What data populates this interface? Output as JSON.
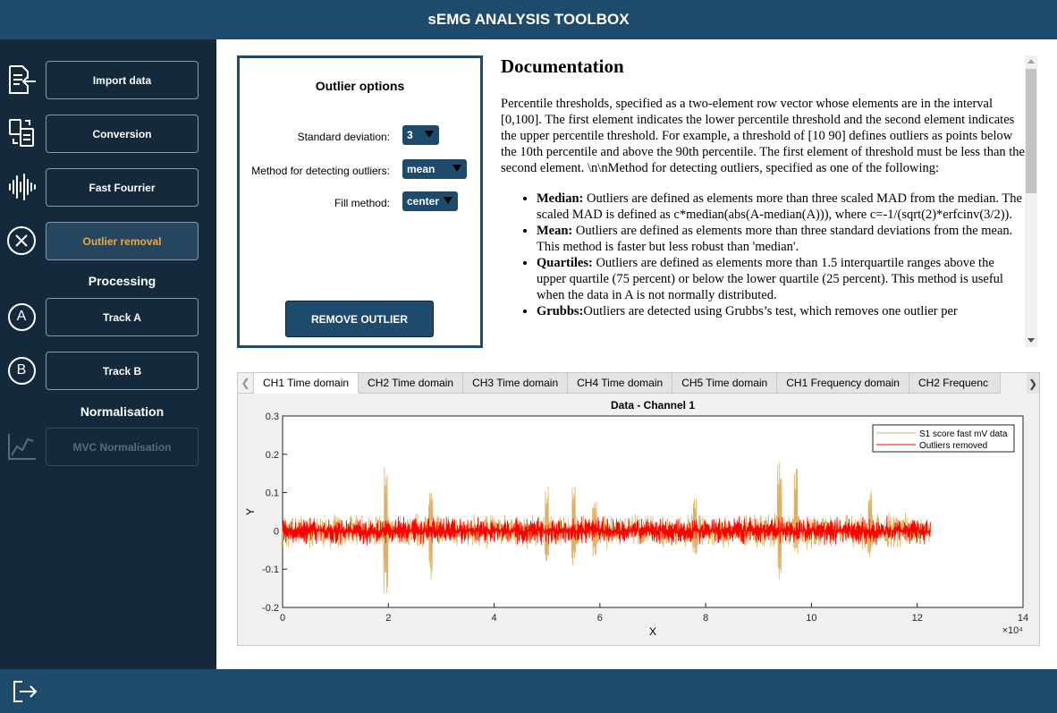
{
  "app": {
    "title": "sEMG ANALYSIS TOOLBOX"
  },
  "sidebar": {
    "items": [
      {
        "label": "Import data",
        "icon": "import-icon"
      },
      {
        "label": "Conversion",
        "icon": "conversion-icon"
      },
      {
        "label": "Fast Fourrier",
        "icon": "waveform-icon"
      },
      {
        "label": "Outlier removal",
        "icon": "close-circle-icon",
        "active": true
      }
    ],
    "processing_title": "Processing",
    "processing_items": [
      {
        "label": "Track A",
        "icon_letter": "A"
      },
      {
        "label": "Track B",
        "icon_letter": "B"
      }
    ],
    "normalisation_title": "Normalisation",
    "normalisation_items": [
      {
        "label": "MVC Normalisation",
        "icon": "line-chart-icon",
        "disabled": true
      }
    ],
    "exit_icon": "logout-icon"
  },
  "options": {
    "title": "Outlier options",
    "std_label": "Standard deviation:",
    "std_value": "3",
    "method_label": "Method for detecting outliers:",
    "method_value": "mean",
    "fill_label": "Fill method:",
    "fill_value": "center",
    "remove_button": "REMOVE OUTLIER"
  },
  "doc": {
    "title": "Documentation",
    "intro": "Percentile thresholds, specified as a two-element row vector whose elements are in the interval [0,100]. The first element indicates the lower percentile threshold and the second element indicates the upper percentile threshold. For example, a threshold of [10 90] defines outliers as points below the 10th percentile and above the 90th percentile. The first element of threshold must be less than the second element. \\n\\nMethod for detecting outliers, specified as one of the following:",
    "items": [
      {
        "term": "Median:",
        "text": " Outliers are defined as elements more than three scaled MAD from the median. The scaled MAD is defined as c*median(abs(A-median(A))), where c=-1/(sqrt(2)*erfcinv(3/2))."
      },
      {
        "term": "Mean:",
        "text": " Outliers are defined as elements more than three standard deviations from the mean. This method is faster but less robust than 'median'."
      },
      {
        "term": "Quartiles:",
        "text": " Outliers are defined as elements more than 1.5 interquartile ranges above the upper quartile (75 percent) or below the lower quartile (25 percent). This method is useful when the data in A is not normally distributed."
      },
      {
        "term": "Grubbs:",
        "text": "Outliers are detected using Grubbs’s test, which removes one outlier per"
      }
    ]
  },
  "tabs": {
    "items": [
      "CH1 Time domain",
      "CH2 Time domain",
      "CH3 Time domain",
      "CH4 Time domain",
      "CH5 Time domain",
      "CH1 Frequency domain",
      "CH2 Frequenc"
    ],
    "active": 0
  },
  "chart_data": {
    "type": "line",
    "title": "Data - Channel 1",
    "xlabel": "X",
    "ylabel": "Y",
    "x_exponent_label": "×10⁴",
    "xlim": [
      0,
      140000
    ],
    "ylim": [
      -0.2,
      0.3
    ],
    "xticks": [
      0,
      2,
      4,
      6,
      8,
      10,
      12,
      14
    ],
    "yticks": [
      0.3,
      0.2,
      0.1,
      0,
      -0.1,
      -0.2
    ],
    "legend_position": "top-right",
    "series": [
      {
        "name": "S1 score fast mV data",
        "color": "#e0b060",
        "x_range": [
          0,
          122500
        ],
        "band": [
          -0.05,
          0.05
        ],
        "spikes": [
          [
            19500,
            0.19,
            -0.165
          ],
          [
            28000,
            0.11,
            -0.13
          ],
          [
            50000,
            0.12,
            -0.08
          ],
          [
            55000,
            0.12,
            -0.09
          ],
          [
            59000,
            0.08,
            -0.07
          ],
          [
            78000,
            0.09,
            -0.07
          ],
          [
            94000,
            0.2,
            -0.13
          ],
          [
            97000,
            0.17,
            -0.07
          ],
          [
            111000,
            0.11,
            -0.07
          ]
        ]
      },
      {
        "name": "Outliers removed",
        "color": "#ff0000",
        "x_range": [
          0,
          122500
        ],
        "band": [
          -0.04,
          0.04
        ]
      }
    ]
  }
}
